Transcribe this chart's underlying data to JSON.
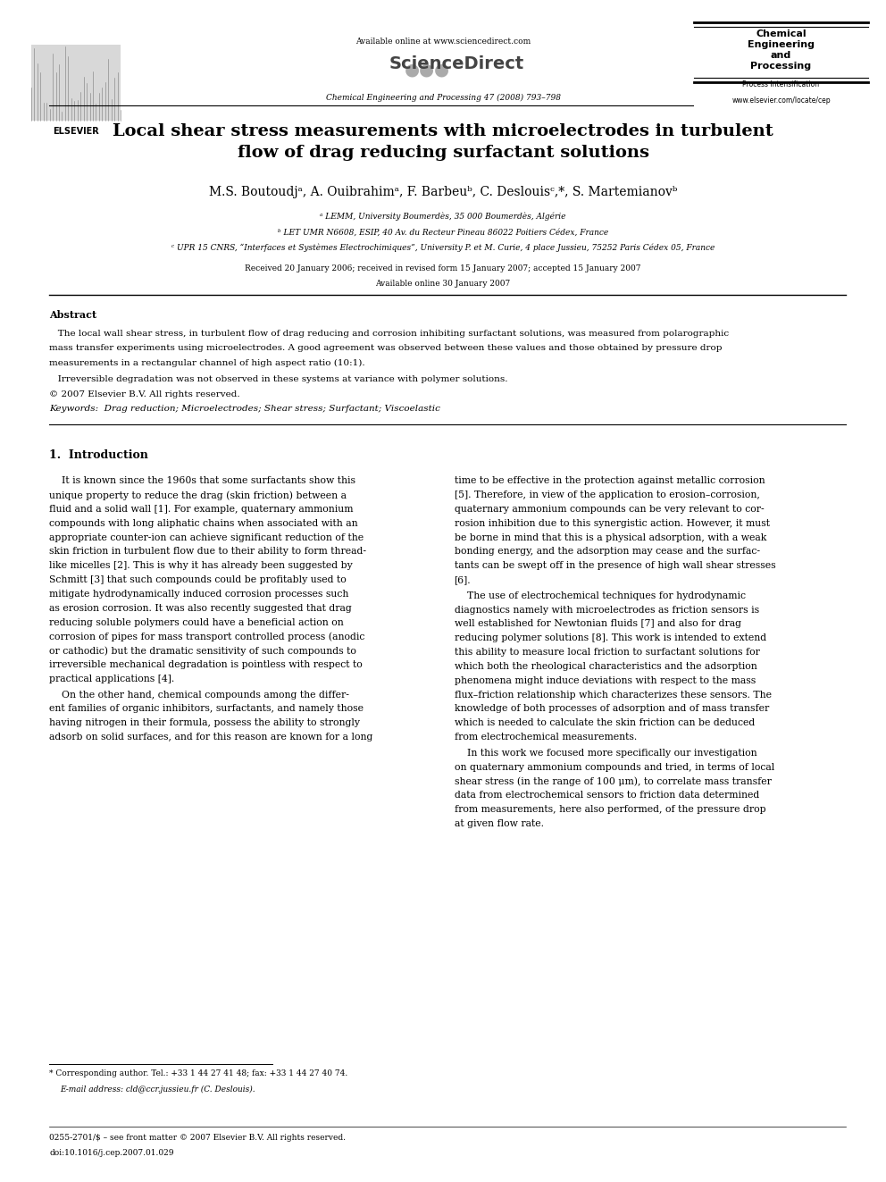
{
  "background_color": "#ffffff",
  "page_width": 9.92,
  "page_height": 13.23,
  "dpi": 100,
  "header": {
    "available_online": "Available online at www.sciencedirect.com",
    "sciencedirect": "ScienceDirect",
    "journal_info": "Chemical Engineering and Processing 47 (2008) 793–798",
    "journal_box_line1": "Chemical",
    "journal_box_line2": "Engineering",
    "journal_box_line3": "and",
    "journal_box_line4": "Processing",
    "journal_box_sub": "Process Intensification",
    "website": "www.elsevier.com/locate/cep",
    "elsevier_label": "ELSEVIER"
  },
  "title": "Local shear stress measurements with microelectrodes in turbulent\nflow of drag reducing surfactant solutions",
  "authors": "M.S. Boutoudjᵃ, A. Ouibrahimᵃ, F. Barbeuᵇ, C. Deslouisᶜ,*, S. Martemianovᵇ",
  "affil_a": "ᵃ LEMM, University Boumerdès, 35 000 Boumerdès, Algérie",
  "affil_b": "ᵇ LET UMR N6608, ESIP, 40 Av. du Recteur Pineau 86022 Poitiers Cédex, France",
  "affil_c": "ᶜ UPR 15 CNRS, “Interfaces et Systèmes Electrochimiques”, University P. et M. Curie, 4 place Jussieu, 75252 Paris Cédex 05, France",
  "received": "Received 20 January 2006; received in revised form 15 January 2007; accepted 15 January 2007",
  "available_online2": "Available online 30 January 2007",
  "abstract_title": "Abstract",
  "abstract_text1": "   The local wall shear stress, in turbulent flow of drag reducing and corrosion inhibiting surfactant solutions, was measured from polarographic\nmass transfer experiments using microelectrodes. A good agreement was observed between these values and those obtained by pressure drop\nmeasurements in a rectangular channel of high aspect ratio (10:1).",
  "abstract_text2": "   Irreversible degradation was not observed in these systems at variance with polymer solutions.",
  "copyright": "© 2007 Elsevier B.V. All rights reserved.",
  "keywords": "Keywords:  Drag reduction; Microelectrodes; Shear stress; Surfactant; Viscoelastic",
  "section1_title": "1.  Introduction",
  "col1_para1_lines": [
    "    It is known since the 1960s that some surfactants show this",
    "unique property to reduce the drag (skin friction) between a",
    "fluid and a solid wall [1]. For example, quaternary ammonium",
    "compounds with long aliphatic chains when associated with an",
    "appropriate counter-ion can achieve significant reduction of the",
    "skin friction in turbulent flow due to their ability to form thread-",
    "like micelles [2]. This is why it has already been suggested by",
    "Schmitt [3] that such compounds could be profitably used to",
    "mitigate hydrodynamically induced corrosion processes such",
    "as erosion corrosion. It was also recently suggested that drag",
    "reducing soluble polymers could have a beneficial action on",
    "corrosion of pipes for mass transport controlled process (anodic",
    "or cathodic) but the dramatic sensitivity of such compounds to",
    "irreversible mechanical degradation is pointless with respect to",
    "practical applications [4]."
  ],
  "col1_para2_lines": [
    "    On the other hand, chemical compounds among the differ-",
    "ent families of organic inhibitors, surfactants, and namely those",
    "having nitrogen in their formula, possess the ability to strongly",
    "adsorb on solid surfaces, and for this reason are known for a long"
  ],
  "col2_para1_lines": [
    "time to be effective in the protection against metallic corrosion",
    "[5]. Therefore, in view of the application to erosion–corrosion,",
    "quaternary ammonium compounds can be very relevant to cor-",
    "rosion inhibition due to this synergistic action. However, it must",
    "be borne in mind that this is a physical adsorption, with a weak",
    "bonding energy, and the adsorption may cease and the surfac-",
    "tants can be swept off in the presence of high wall shear stresses",
    "[6]."
  ],
  "col2_para2_lines": [
    "    The use of electrochemical techniques for hydrodynamic",
    "diagnostics namely with microelectrodes as friction sensors is",
    "well established for Newtonian fluids [7] and also for drag",
    "reducing polymer solutions [8]. This work is intended to extend",
    "this ability to measure local friction to surfactant solutions for",
    "which both the rheological characteristics and the adsorption",
    "phenomena might induce deviations with respect to the mass",
    "flux–friction relationship which characterizes these sensors. The",
    "knowledge of both processes of adsorption and of mass transfer",
    "which is needed to calculate the skin friction can be deduced",
    "from electrochemical measurements."
  ],
  "col2_para3_lines": [
    "    In this work we focused more specifically our investigation",
    "on quaternary ammonium compounds and tried, in terms of local",
    "shear stress (in the range of 100 μm), to correlate mass transfer",
    "data from electrochemical sensors to friction data determined",
    "from measurements, here also performed, of the pressure drop",
    "at given flow rate."
  ],
  "footnote_star": "* Corresponding author. Tel.: +33 1 44 27 41 48; fax: +33 1 44 27 40 74.",
  "footnote_email": "E-mail address: cld@ccr.jussieu.fr (C. Deslouis).",
  "footer_issn": "0255-2701/$ – see front matter © 2007 Elsevier B.V. All rights reserved.",
  "footer_doi": "doi:10.1016/j.cep.2007.01.029"
}
